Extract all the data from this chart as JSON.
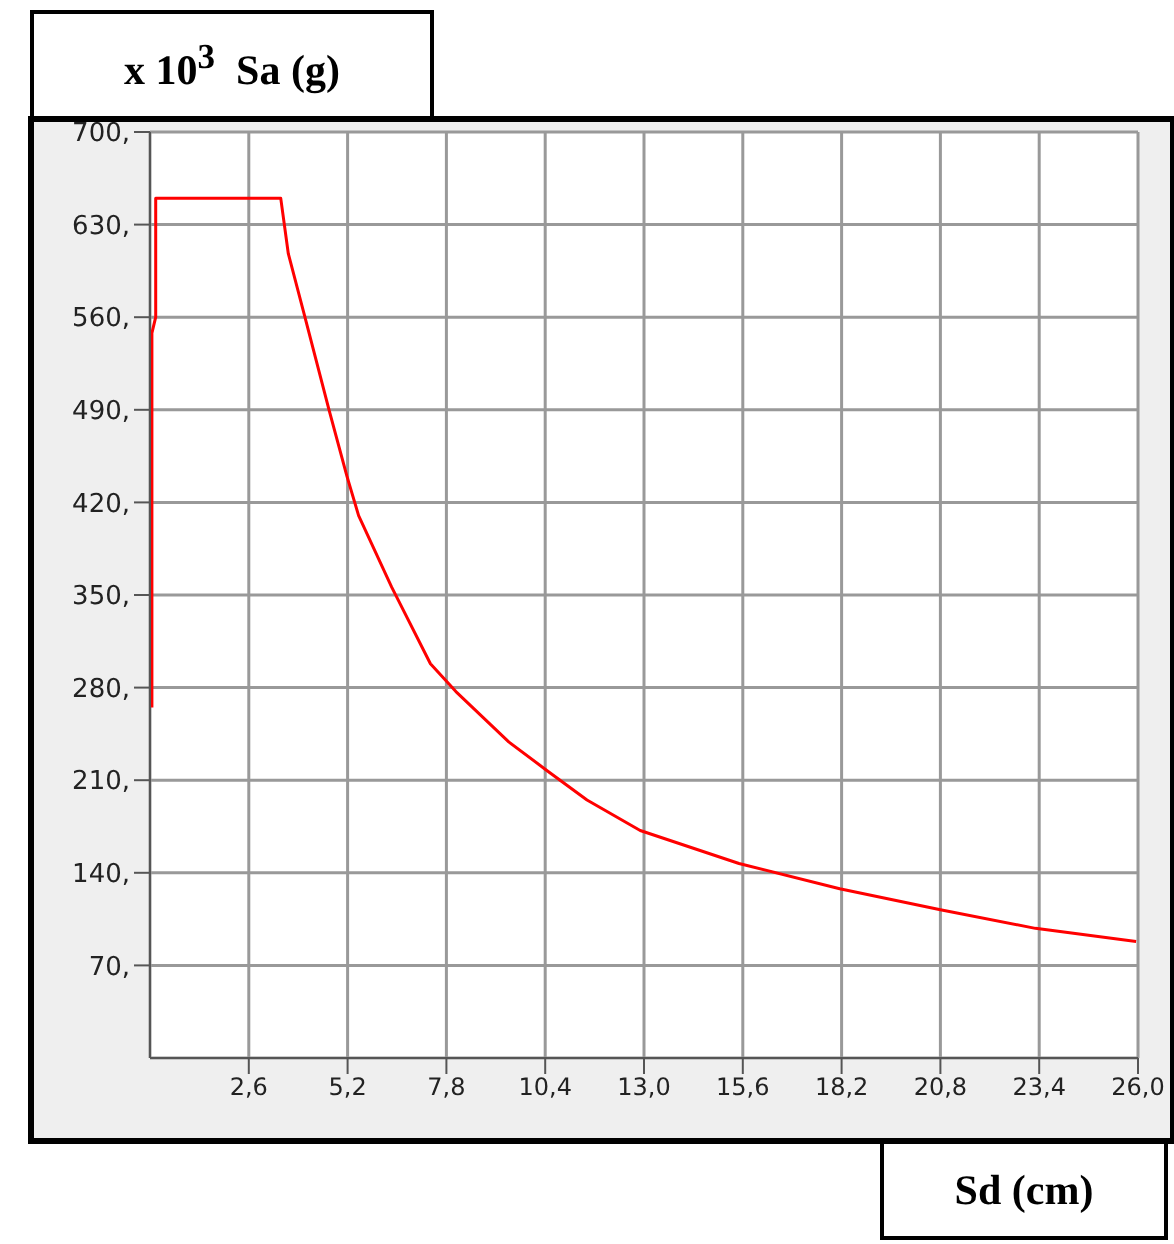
{
  "chart_data": {
    "type": "line",
    "ylabel": "x 10$^{3}$  Sa (g)",
    "xlabel": "Sd (cm)",
    "x": [
      0.05,
      0.05,
      0.15,
      0.15,
      3.44,
      3.64,
      4.05,
      4.72,
      5.18,
      5.49,
      6.36,
      7.38,
      8.05,
      9.44,
      10.46,
      11.5,
      12.9,
      15.5,
      18.15,
      20.8,
      23.3,
      25.95
    ],
    "values": [
      265,
      548,
      560,
      650,
      650,
      608,
      563,
      489,
      440,
      410,
      356,
      298,
      277,
      239,
      217,
      195,
      172,
      147,
      128,
      112,
      98,
      88
    ],
    "color": "#ff0000",
    "xlim": [
      0,
      26.0
    ],
    "xticks": [
      {
        "value": 2.6,
        "label": "2,6"
      },
      {
        "value": 5.2,
        "label": "5,2"
      },
      {
        "value": 7.8,
        "label": "7,8"
      },
      {
        "value": 10.4,
        "label": "10,4"
      },
      {
        "value": 13.0,
        "label": "13,0"
      },
      {
        "value": 15.6,
        "label": "15,6"
      },
      {
        "value": 18.2,
        "label": "18,2"
      },
      {
        "value": 20.8,
        "label": "20,8"
      },
      {
        "value": 23.4,
        "label": "23,4"
      },
      {
        "value": 26.0,
        "label": "26,0"
      }
    ],
    "ylim": [
      0,
      700
    ],
    "yticks": [
      {
        "value": 70,
        "label": "70,"
      },
      {
        "value": 140,
        "label": "140,"
      },
      {
        "value": 210,
        "label": "210,"
      },
      {
        "value": 280,
        "label": "280,"
      },
      {
        "value": 350,
        "label": "350,"
      },
      {
        "value": 420,
        "label": "420,"
      },
      {
        "value": 490,
        "label": "490,"
      },
      {
        "value": 560,
        "label": "560,"
      },
      {
        "value": 630,
        "label": "630,"
      },
      {
        "value": 700,
        "label": "700,"
      }
    ],
    "grid": true,
    "marker": "none",
    "line_style": "solid"
  }
}
